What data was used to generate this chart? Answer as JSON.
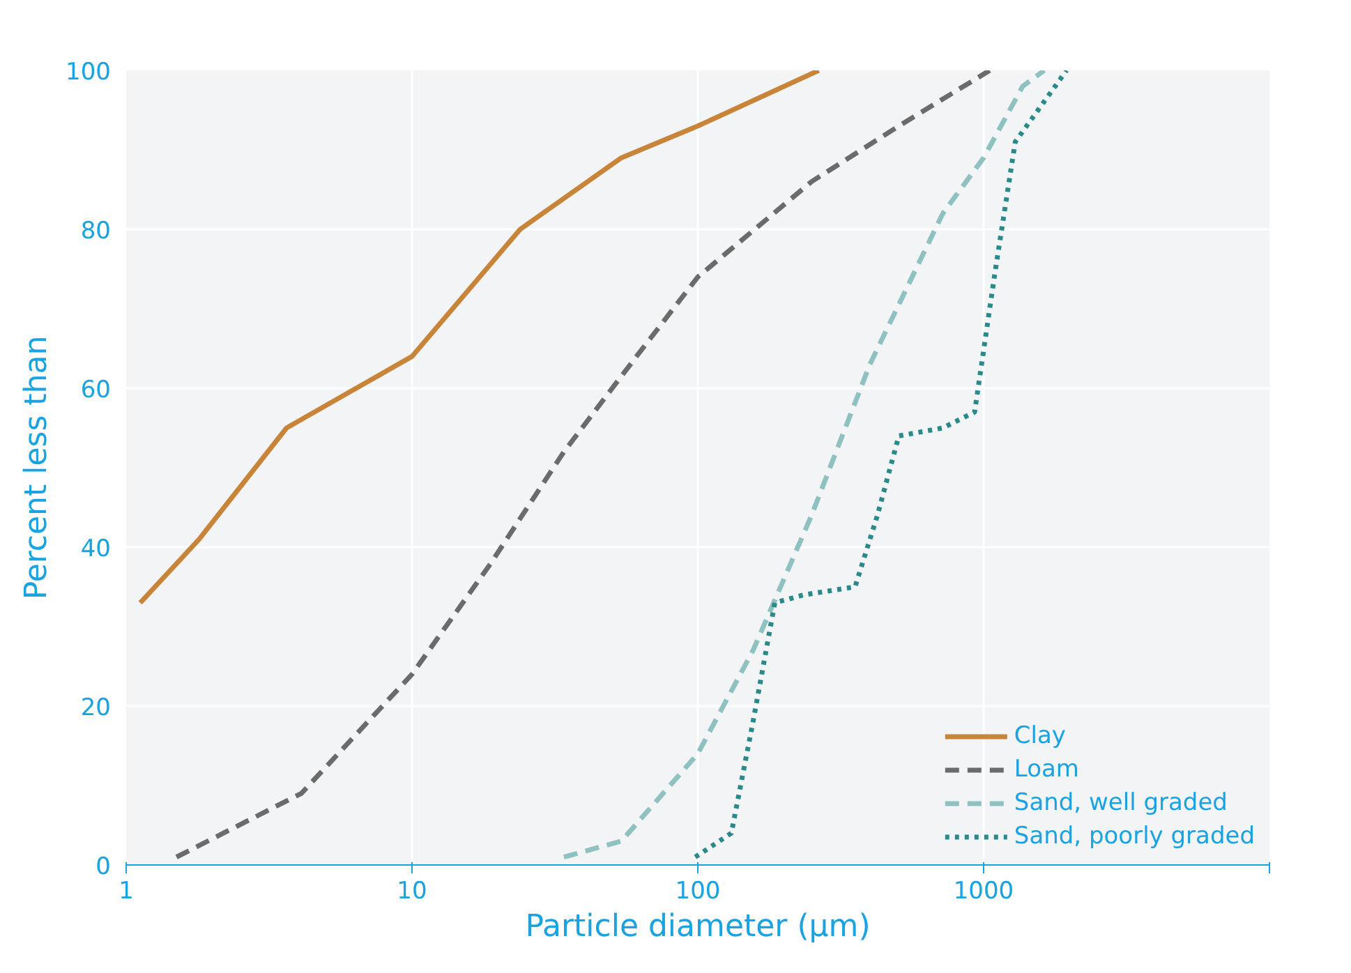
{
  "chart_data": {
    "type": "line",
    "xlabel": "Particle diameter (µm)",
    "ylabel": "Percent less than",
    "log": "x",
    "xlim": [
      1,
      10000
    ],
    "xticks": [
      1,
      10,
      100,
      1000,
      {
        "value": 10000,
        "label": null
      }
    ],
    "ylim": [
      0,
      100
    ],
    "yticks": [
      0,
      20,
      40,
      60,
      80,
      100
    ],
    "grid": true,
    "legend": "bottom right",
    "series": [
      {
        "name": "Clay",
        "color": "#c8853a",
        "line_style": "solid",
        "x": [
          1.12,
          1.8,
          3.64,
          10,
          23.9,
          54,
          100,
          265
        ],
        "values": [
          33,
          41,
          55,
          64,
          80,
          89,
          93,
          100
        ]
      },
      {
        "name": "Loam",
        "color": "#6b6b6b",
        "line_style": "dashed",
        "x": [
          1.5,
          4.1,
          10,
          18.9,
          34,
          61,
          100,
          250,
          505,
          1050
        ],
        "values": [
          1,
          9,
          24,
          38,
          52,
          64,
          74,
          86,
          93,
          100
        ]
      },
      {
        "name": "Sand, well graded",
        "color": "#8fc1c0",
        "line_style": "dashed",
        "x": [
          34,
          54,
          100,
          156,
          250,
          400,
          720,
          1000,
          1370,
          1630
        ],
        "values": [
          1,
          3,
          14,
          27,
          44,
          63,
          82,
          89,
          98,
          100
        ]
      },
      {
        "name": "Sand, poorly graded",
        "color": "#2a8a8a",
        "line_style": "dotted",
        "x": [
          98,
          131,
          156,
          186,
          235,
          355,
          425,
          505,
          720,
          930,
          1090,
          1290,
          1950
        ],
        "values": [
          1,
          4,
          18,
          33,
          34,
          35,
          44,
          54,
          55,
          57,
          74,
          91,
          100
        ]
      }
    ]
  }
}
